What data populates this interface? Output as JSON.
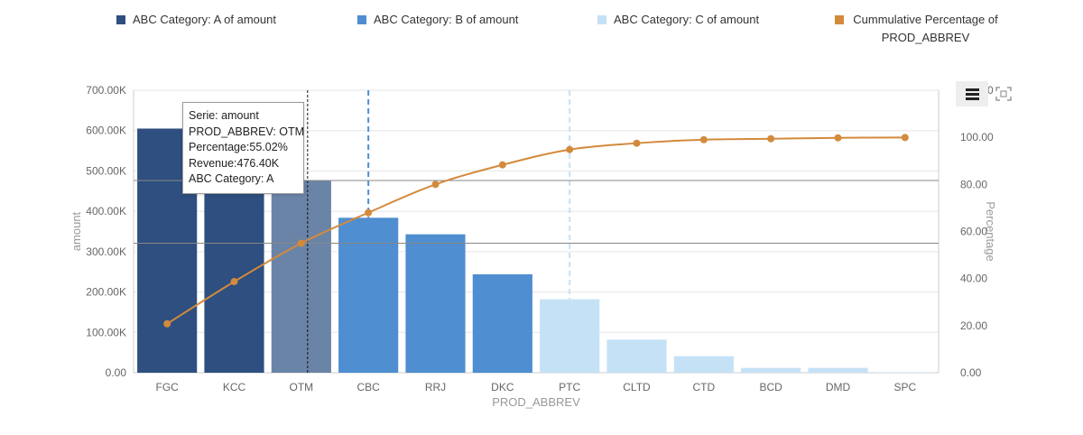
{
  "colors": {
    "category_a": "#2e4f7f",
    "category_a_hover": "#6a84a8",
    "category_b": "#4f8ed0",
    "category_c": "#c5e1f6",
    "cumulative": "#d38a3c",
    "axis_text": "#666666",
    "grid": "#e6e6e6"
  },
  "legend": [
    {
      "label": "ABC Category: A of amount",
      "color": "#2e4f7f"
    },
    {
      "label": "ABC Category: B of amount",
      "color": "#4f8ed0"
    },
    {
      "label": "ABC Category: C of amount",
      "color": "#c5e1f6"
    },
    {
      "label": "Cummulative Percentage of PROD_ABBREV",
      "color": "#d38a3c"
    }
  ],
  "tooltip": {
    "line1": "Serie: amount",
    "line2": "PROD_ABBREV: OTM",
    "line3": "Percentage:55.02%",
    "line4": "Revenue:476.40K",
    "line5": "ABC Category: A"
  },
  "toolbar": {
    "menu_icon": "hamburger-icon",
    "expand_icon": "fullscreen-icon"
  },
  "chart_data": {
    "type": "bar",
    "xlabel": "PROD_ABBREV",
    "ylabel": "amount",
    "y2label": "Percentage",
    "categories": [
      "FGC",
      "KCC",
      "OTM",
      "CBC",
      "RRJ",
      "DKC",
      "PTC",
      "CLTD",
      "CTD",
      "BCD",
      "DMD",
      "SPC"
    ],
    "abc_category": [
      "A",
      "A",
      "A",
      "B",
      "B",
      "B",
      "C",
      "C",
      "C",
      "C",
      "C",
      "C"
    ],
    "values": [
      605000,
      608000,
      476400,
      384000,
      343000,
      244000,
      182000,
      82000,
      41000,
      12000,
      12000,
      1000
    ],
    "cumulative_percentage": [
      20.8,
      38.7,
      55.02,
      68.0,
      80.0,
      88.3,
      94.8,
      97.5,
      99.0,
      99.4,
      99.8,
      99.9
    ],
    "ylim": [
      0,
      700000
    ],
    "yticks": [
      "0.00",
      "100.00K",
      "200.00K",
      "300.00K",
      "400.00K",
      "500.00K",
      "600.00K",
      "700.00K"
    ],
    "y2lim": [
      0,
      120
    ],
    "y2ticks": [
      "0.00",
      "20.00",
      "40.00",
      "60.00",
      "80.00",
      "100.00",
      "120.00"
    ],
    "hovered_category": "OTM",
    "grid": true,
    "legend_position": "top"
  }
}
